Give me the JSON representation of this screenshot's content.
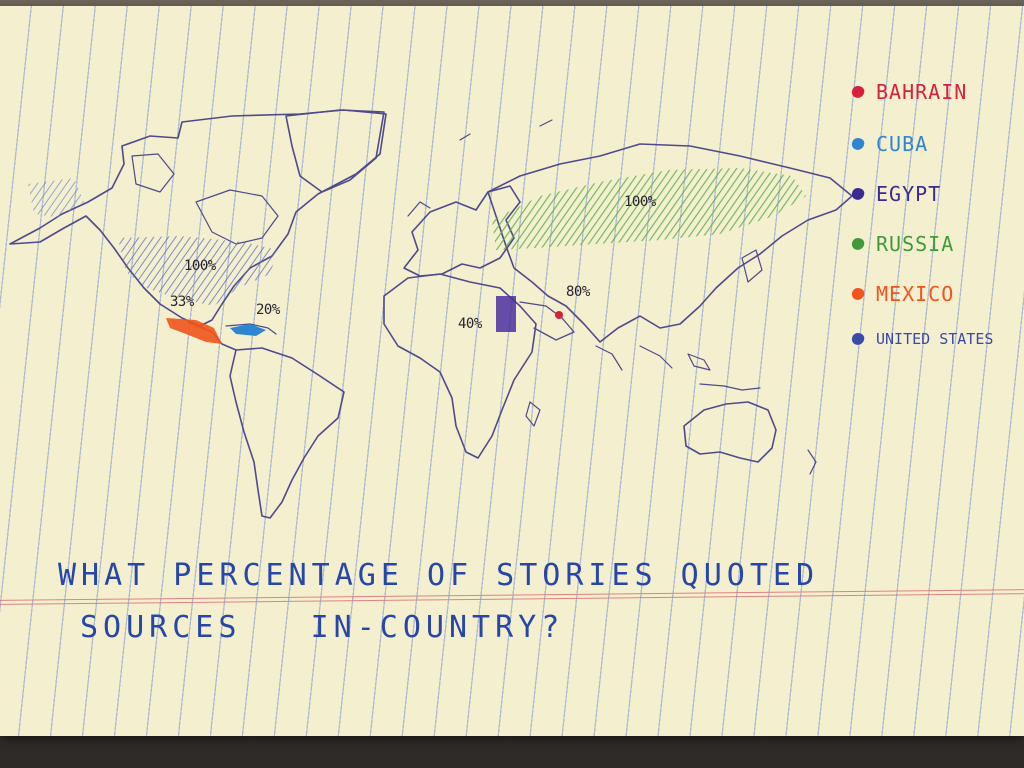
{
  "title_line1": "WHAT PERCENTAGE OF STORIES QUOTED",
  "title_line2": "SOURCES   IN-COUNTRY?",
  "legend": [
    {
      "label": "BAHRAIN",
      "color": "#d81f3c"
    },
    {
      "label": "CUBA",
      "color": "#2f86d0"
    },
    {
      "label": "EGYPT",
      "color": "#3b2a92"
    },
    {
      "label": "RUSSIA",
      "color": "#3f9a3a"
    },
    {
      "label": "MEXICO",
      "color": "#f2541b"
    },
    {
      "label": "UNITED STATES",
      "color": "#3b4aa8"
    }
  ],
  "map_labels": {
    "russia": "100%",
    "united_states": "100%",
    "mexico": "33%",
    "cuba": "20%",
    "egypt": "40%",
    "bahrain": "80%"
  },
  "values": {
    "bahrain": 80,
    "cuba": 20,
    "egypt": 40,
    "russia": 100,
    "mexico": 33,
    "united_states": 100
  }
}
